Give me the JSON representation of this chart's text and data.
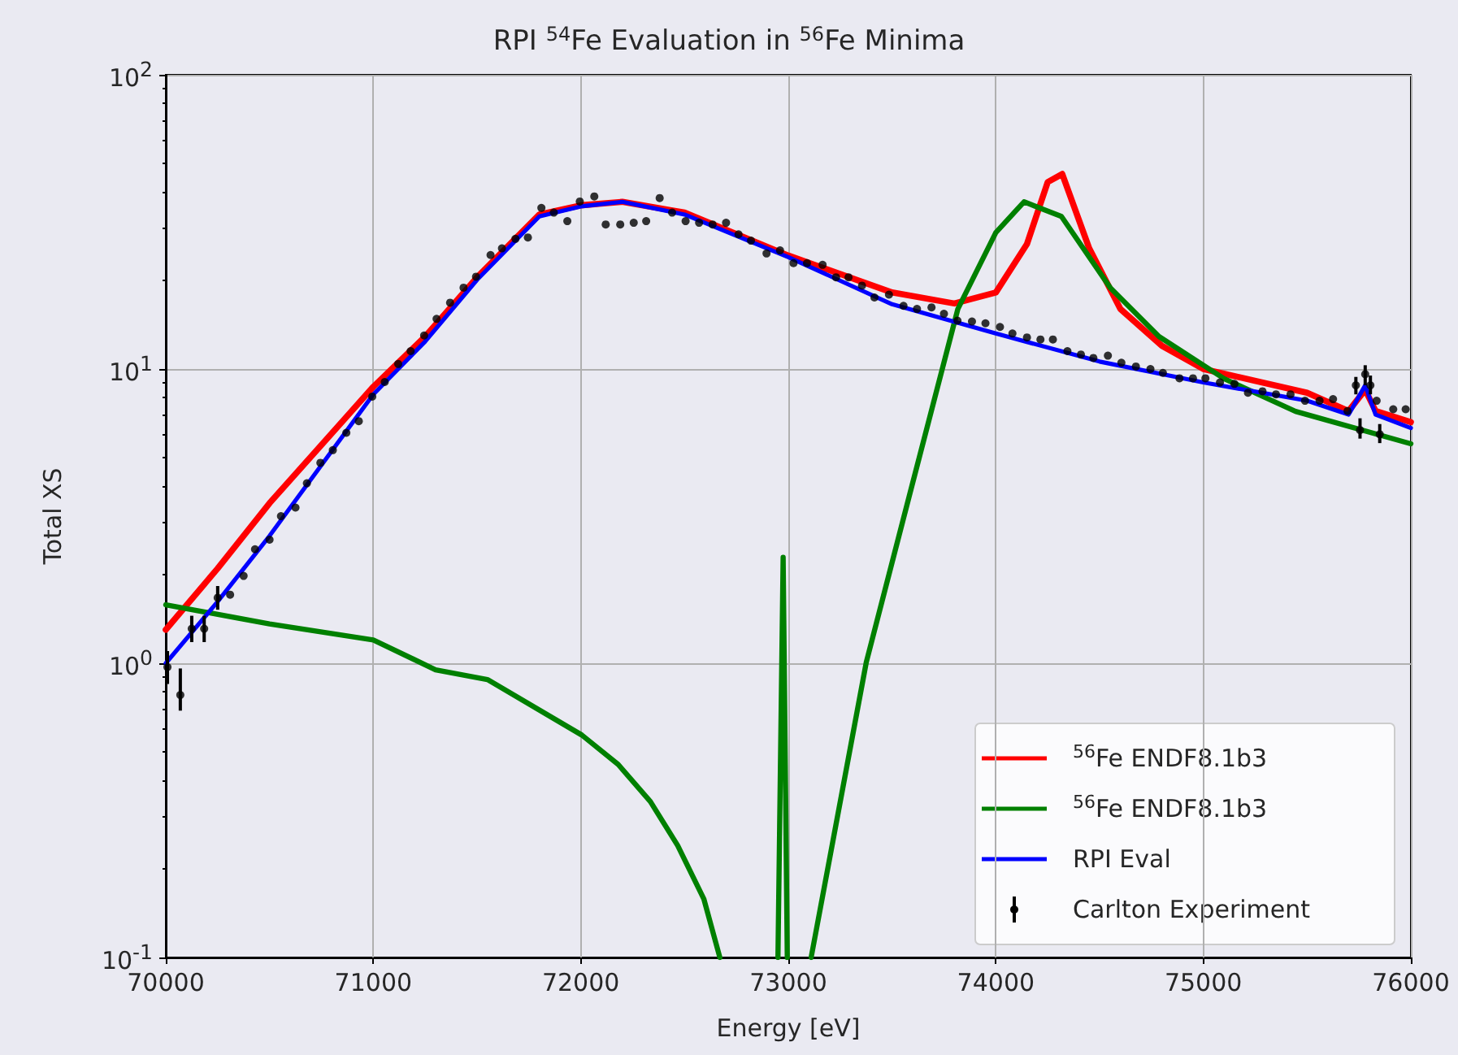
{
  "chart_data": {
    "type": "line",
    "title": "RPI $^{54}$Fe Evaluation in $^{56}$Fe Minima",
    "xlabel": "Energy [eV]",
    "ylabel": "Total XS",
    "log": "y",
    "grid": true,
    "legend": "bottom right",
    "marker": "none",
    "line_style": "solid",
    "xlim": [
      70000,
      76000
    ],
    "xticks": [
      70000,
      71000,
      72000,
      73000,
      74000,
      75000,
      76000
    ],
    "ylim": [
      0.1,
      100
    ],
    "yticks": [
      {
        "value": 0.1,
        "label": "10$^{-1}$"
      },
      {
        "value": 1,
        "label": "10$^{0}$"
      },
      {
        "value": 10,
        "label": "10$^{1}$"
      },
      {
        "value": 100,
        "label": "10$^{2}$"
      }
    ],
    "series": [
      {
        "name": "$^{56}$Fe ENDF8.1b3",
        "color": "#ff0000",
        "x": [
          70000,
          70250,
          70500,
          71000,
          71250,
          71500,
          71800,
          72000,
          72200,
          72500,
          73000,
          73500,
          73800,
          74000,
          74150,
          74250,
          74320,
          74450,
          74600,
          74800,
          75000,
          75500,
          75700,
          75780,
          75830,
          76000
        ],
        "values": [
          1.3,
          2.1,
          3.5,
          8.7,
          12.9,
          20.5,
          33.5,
          36.0,
          37.0,
          34.0,
          24.3,
          18.2,
          16.7,
          18.2,
          26.6,
          43.2,
          46.0,
          25.7,
          16.0,
          12.0,
          10.0,
          8.3,
          7.2,
          8.5,
          7.2,
          6.6
        ]
      },
      {
        "name": "$^{56}$Fe ENDF8.1b3",
        "color": "#008000",
        "x": [
          70000,
          70500,
          71000,
          71300,
          71550,
          72005,
          72180,
          72335,
          72467,
          72593,
          72670,
          72800,
          72950,
          72975,
          72995,
          73050,
          73110,
          73376,
          73587,
          73817,
          74000,
          74136,
          74316,
          74551,
          74786,
          75100,
          75444,
          76000
        ],
        "values": [
          1.58,
          1.36,
          1.2,
          0.95,
          0.88,
          0.57,
          0.453,
          0.339,
          0.24,
          0.158,
          0.1,
          null,
          0.1,
          2.29,
          0.1,
          null,
          0.1,
          1.01,
          3.8,
          16.0,
          29.1,
          37.0,
          33.0,
          18.9,
          12.9,
          9.27,
          7.18,
          5.57
        ]
      },
      {
        "name": "RPI Eval",
        "color": "#0000ff",
        "x": [
          70000,
          70250,
          70500,
          71000,
          71250,
          71500,
          71800,
          72000,
          72200,
          72500,
          73000,
          73500,
          74000,
          74500,
          75000,
          75500,
          75700,
          75780,
          75830,
          76000
        ],
        "values": [
          1.0,
          1.62,
          2.71,
          8.2,
          12.4,
          20.1,
          33.0,
          35.7,
          37.0,
          33.5,
          24.0,
          16.6,
          13.2,
          10.6,
          9.0,
          7.8,
          7.0,
          8.8,
          7.0,
          6.3
        ]
      },
      {
        "name": "Carlton Experiment",
        "type": "scatter",
        "marker": "circle",
        "color": "#000000",
        "x": [
          70008,
          70070,
          70125,
          70185,
          70250,
          70310,
          70375,
          70430,
          70500,
          70555,
          70625,
          70680,
          70745,
          70805,
          70870,
          70930,
          70995,
          71055,
          71120,
          71180,
          71245,
          71305,
          71370,
          71435,
          71495,
          71565,
          71620,
          71685,
          71745,
          71810,
          71870,
          71935,
          71995,
          72065,
          72120,
          72190,
          72255,
          72315,
          72380,
          72440,
          72505,
          72570,
          72635,
          72700,
          72760,
          72820,
          72895,
          72960,
          73025,
          73090,
          73165,
          73230,
          73290,
          73355,
          73415,
          73485,
          73555,
          73620,
          73690,
          73750,
          73815,
          73885,
          73950,
          74020,
          74080,
          74150,
          74215,
          74275,
          74345,
          74410,
          74470,
          74540,
          74605,
          74675,
          74745,
          74805,
          74885,
          74950,
          75010,
          75080,
          75150,
          75215,
          75285,
          75350,
          75420,
          75490,
          75560,
          75625,
          75695,
          75735,
          75755,
          75780,
          75805,
          75835,
          75850,
          75915,
          75975
        ],
        "values": [
          0.97,
          0.78,
          1.31,
          1.31,
          1.67,
          1.71,
          1.98,
          2.44,
          2.63,
          3.16,
          3.38,
          4.09,
          4.8,
          5.3,
          6.07,
          6.65,
          8.06,
          9.03,
          10.4,
          11.5,
          13.0,
          14.8,
          16.8,
          18.9,
          20.6,
          24.4,
          25.7,
          27.7,
          28.0,
          35.3,
          34.0,
          31.8,
          37.1,
          38.6,
          31.0,
          31.0,
          31.4,
          31.8,
          38.1,
          34.0,
          31.8,
          31.4,
          31.0,
          31.4,
          28.7,
          27.3,
          24.7,
          25.3,
          22.9,
          22.9,
          22.6,
          20.5,
          20.5,
          19.2,
          17.5,
          17.9,
          16.4,
          16.0,
          16.2,
          15.4,
          14.6,
          14.5,
          14.3,
          13.9,
          13.2,
          12.8,
          12.6,
          12.6,
          11.5,
          11.2,
          10.9,
          11.1,
          10.5,
          10.2,
          10.0,
          9.7,
          9.3,
          9.3,
          9.3,
          9.0,
          8.9,
          8.3,
          8.4,
          8.2,
          8.2,
          7.8,
          7.8,
          7.9,
          7.2,
          8.8,
          6.2,
          9.6,
          8.8,
          7.8,
          6.0,
          7.3,
          7.3
        ],
        "errors": [
          [
            0.85,
            1.1
          ],
          [
            0.69,
            0.96
          ],
          [
            1.18,
            1.45
          ],
          [
            1.18,
            1.45
          ],
          [
            1.52,
            1.83
          ],
          null,
          null,
          null,
          null,
          null,
          null,
          null,
          null,
          null,
          null,
          null,
          null,
          null,
          null,
          null,
          null,
          null,
          null,
          null,
          null,
          null,
          null,
          null,
          null,
          null,
          null,
          null,
          null,
          null,
          null,
          null,
          null,
          null,
          null,
          null,
          null,
          null,
          null,
          null,
          null,
          null,
          null,
          null,
          null,
          null,
          null,
          null,
          null,
          null,
          null,
          null,
          null,
          null,
          null,
          null,
          null,
          null,
          null,
          null,
          null,
          null,
          null,
          null,
          null,
          null,
          null,
          null,
          null,
          null,
          null,
          null,
          null,
          null,
          null,
          null,
          null,
          null,
          null,
          null,
          null,
          null,
          null,
          null,
          null,
          [
            8.2,
            9.4
          ],
          [
            5.8,
            6.8
          ],
          [
            8.8,
            10.3
          ],
          [
            8.2,
            9.5
          ],
          null,
          [
            5.6,
            6.5
          ],
          null,
          null
        ]
      }
    ]
  }
}
